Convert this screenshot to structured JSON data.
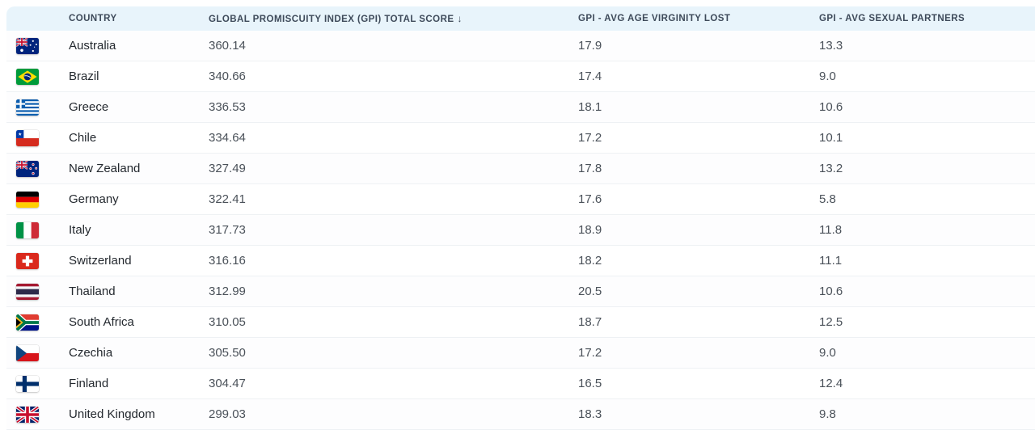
{
  "colors": {
    "header_bg": "#e8f4fb",
    "header_text": "#3e4a5a",
    "row_separator": "#eef1f4"
  },
  "table": {
    "columns": [
      {
        "id": "country",
        "label": "COUNTRY"
      },
      {
        "id": "gpi_total",
        "label": "GLOBAL PROMISCUITY INDEX (GPI) TOTAL SCORE",
        "sort": "desc",
        "sort_icon": "↓"
      },
      {
        "id": "avg_age",
        "label": "GPI - AVG AGE VIRGINITY LOST"
      },
      {
        "id": "avg_partners",
        "label": "GPI - AVG SEXUAL PARTNERS"
      }
    ],
    "rows": [
      {
        "flag": "australia",
        "country": "Australia",
        "gpi_total": "360.14",
        "avg_age": "17.9",
        "avg_partners": "13.3"
      },
      {
        "flag": "brazil",
        "country": "Brazil",
        "gpi_total": "340.66",
        "avg_age": "17.4",
        "avg_partners": "9.0"
      },
      {
        "flag": "greece",
        "country": "Greece",
        "gpi_total": "336.53",
        "avg_age": "18.1",
        "avg_partners": "10.6"
      },
      {
        "flag": "chile",
        "country": "Chile",
        "gpi_total": "334.64",
        "avg_age": "17.2",
        "avg_partners": "10.1"
      },
      {
        "flag": "new-zealand",
        "country": "New Zealand",
        "gpi_total": "327.49",
        "avg_age": "17.8",
        "avg_partners": "13.2"
      },
      {
        "flag": "germany",
        "country": "Germany",
        "gpi_total": "322.41",
        "avg_age": "17.6",
        "avg_partners": "5.8"
      },
      {
        "flag": "italy",
        "country": "Italy",
        "gpi_total": "317.73",
        "avg_age": "18.9",
        "avg_partners": "11.8"
      },
      {
        "flag": "switzerland",
        "country": "Switzerland",
        "gpi_total": "316.16",
        "avg_age": "18.2",
        "avg_partners": "11.1"
      },
      {
        "flag": "thailand",
        "country": "Thailand",
        "gpi_total": "312.99",
        "avg_age": "20.5",
        "avg_partners": "10.6"
      },
      {
        "flag": "south-africa",
        "country": "South Africa",
        "gpi_total": "310.05",
        "avg_age": "18.7",
        "avg_partners": "12.5"
      },
      {
        "flag": "czechia",
        "country": "Czechia",
        "gpi_total": "305.50",
        "avg_age": "17.2",
        "avg_partners": "9.0"
      },
      {
        "flag": "finland",
        "country": "Finland",
        "gpi_total": "304.47",
        "avg_age": "16.5",
        "avg_partners": "12.4"
      },
      {
        "flag": "united-kingdom",
        "country": "United Kingdom",
        "gpi_total": "299.03",
        "avg_age": "18.3",
        "avg_partners": "9.8"
      }
    ]
  }
}
